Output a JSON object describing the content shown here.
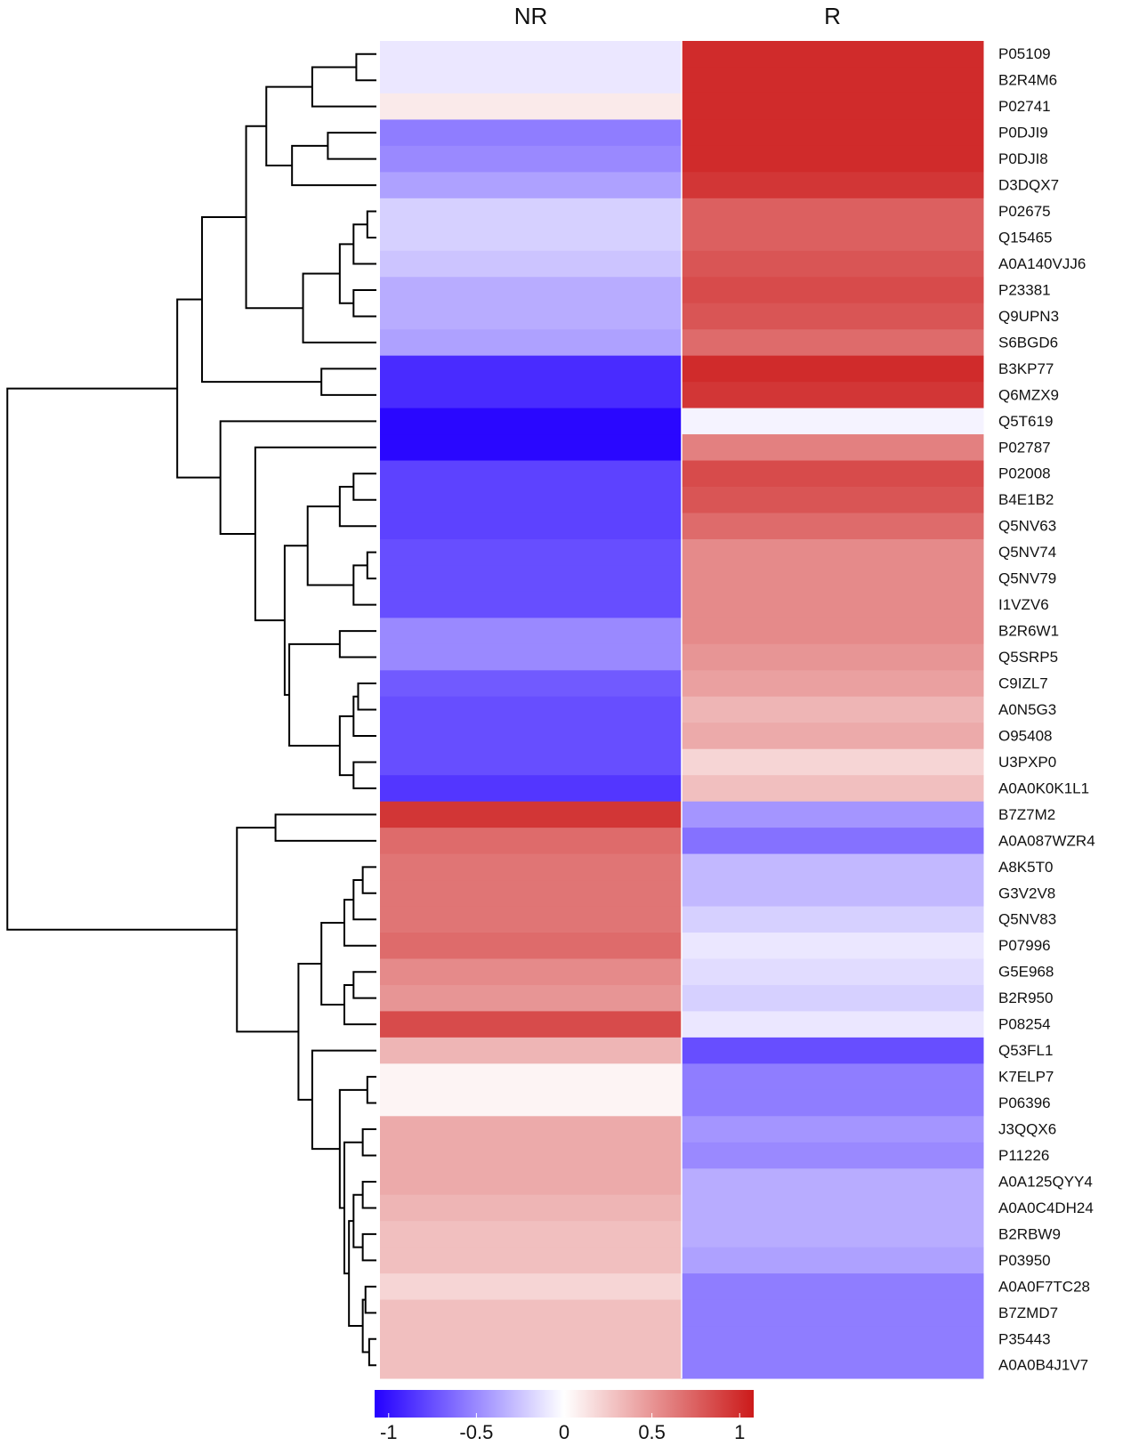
{
  "chart_data": {
    "type": "heatmap",
    "columns": [
      "NR",
      "R"
    ],
    "rows": [
      "P05109",
      "B2R4M6",
      "P02741",
      "P0DJI9",
      "P0DJI8",
      "D3DQX7",
      "P02675",
      "Q15465",
      "A0A140VJJ6",
      "P23381",
      "Q9UPN3",
      "S6BGD6",
      "B3KP77",
      "Q6MZX9",
      "Q5T619",
      "P02787",
      "P02008",
      "B4E1B2",
      "Q5NV63",
      "Q5NV74",
      "Q5NV79",
      "I1VZV6",
      "B2R6W1",
      "Q5SRP5",
      "C9IZL7",
      "A0N5G3",
      "O95408",
      "U3PXP0",
      "A0A0K0K1L1",
      "B7Z7M2",
      "A0A087WZR4",
      "A8K5T0",
      "G3V2V8",
      "Q5NV83",
      "P07996",
      "G5E968",
      "B2R950",
      "P08254",
      "Q53FL1",
      "K7ELP7",
      "P06396",
      "J3QQX6",
      "P11226",
      "A0A125QYY4",
      "A0A0C4DH24",
      "B2RBW9",
      "P03950",
      "A0A0F7TC28",
      "B7ZMD7",
      "P35443",
      "A0A0B4J1V7"
    ],
    "values": [
      [
        -0.1,
        1.0
      ],
      [
        -0.1,
        1.0
      ],
      [
        0.1,
        1.0
      ],
      [
        -0.55,
        1.0
      ],
      [
        -0.5,
        1.0
      ],
      [
        -0.4,
        0.95
      ],
      [
        -0.2,
        0.75
      ],
      [
        -0.2,
        0.75
      ],
      [
        -0.25,
        0.8
      ],
      [
        -0.35,
        0.85
      ],
      [
        -0.35,
        0.8
      ],
      [
        -0.4,
        0.7
      ],
      [
        -0.9,
        1.0
      ],
      [
        -0.9,
        0.95
      ],
      [
        -1.05,
        -0.05
      ],
      [
        -1.05,
        0.6
      ],
      [
        -0.8,
        0.85
      ],
      [
        -0.8,
        0.8
      ],
      [
        -0.8,
        0.7
      ],
      [
        -0.75,
        0.55
      ],
      [
        -0.75,
        0.55
      ],
      [
        -0.75,
        0.55
      ],
      [
        -0.5,
        0.55
      ],
      [
        -0.5,
        0.5
      ],
      [
        -0.7,
        0.45
      ],
      [
        -0.75,
        0.35
      ],
      [
        -0.75,
        0.4
      ],
      [
        -0.75,
        0.2
      ],
      [
        -0.85,
        0.3
      ],
      [
        0.95,
        -0.45
      ],
      [
        0.7,
        -0.6
      ],
      [
        0.65,
        -0.3
      ],
      [
        0.65,
        -0.3
      ],
      [
        0.65,
        -0.2
      ],
      [
        0.7,
        -0.1
      ],
      [
        0.55,
        -0.15
      ],
      [
        0.5,
        -0.2
      ],
      [
        0.85,
        -0.1
      ],
      [
        0.35,
        -0.75
      ],
      [
        0.05,
        -0.55
      ],
      [
        0.05,
        -0.55
      ],
      [
        0.4,
        -0.45
      ],
      [
        0.4,
        -0.5
      ],
      [
        0.4,
        -0.35
      ],
      [
        0.35,
        -0.35
      ],
      [
        0.3,
        -0.35
      ],
      [
        0.3,
        -0.4
      ],
      [
        0.2,
        -0.55
      ],
      [
        0.3,
        -0.55
      ],
      [
        0.3,
        -0.55
      ],
      [
        0.3,
        -0.55
      ]
    ],
    "colors": [
      "#2400ff",
      "#ffffff",
      "#cc1a1a"
    ],
    "clim": [
      -1.08,
      1.08
    ],
    "colorbar_ticks": [
      -1,
      -0.5,
      0,
      0.5,
      1
    ]
  }
}
